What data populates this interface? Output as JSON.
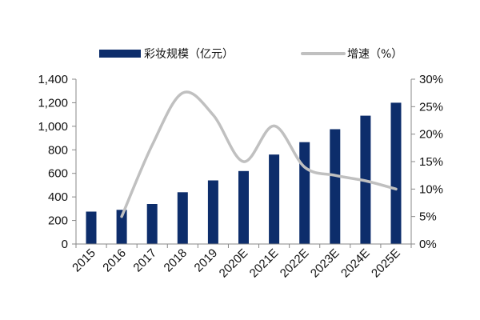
{
  "chart_data": {
    "type": "bar",
    "categories": [
      "2015",
      "2016",
      "2017",
      "2018",
      "2019",
      "2020E",
      "2021E",
      "2022E",
      "2023E",
      "2024E",
      "2025E"
    ],
    "series": [
      {
        "name": "彩妆规模（亿元）",
        "type": "bar",
        "axis": "left",
        "values": [
          275,
          290,
          340,
          440,
          540,
          620,
          760,
          865,
          975,
          1090,
          1200
        ],
        "color": "#0d2d6b"
      },
      {
        "name": "增速（%）",
        "type": "line",
        "axis": "right",
        "values": [
          null,
          5,
          18,
          27.5,
          23.5,
          15,
          21.5,
          14,
          12.5,
          11.5,
          10
        ],
        "color": "#c0c0c0"
      }
    ],
    "left_axis": {
      "ylim": [
        0,
        1400
      ],
      "ticks": [
        0,
        200,
        400,
        600,
        800,
        1000,
        1200,
        1400
      ],
      "tick_labels": [
        "0",
        "200",
        "400",
        "600",
        "800",
        "1,000",
        "1,200",
        "1,400"
      ]
    },
    "right_axis": {
      "ylim": [
        0,
        30
      ],
      "ticks": [
        0,
        5,
        10,
        15,
        20,
        25,
        30
      ],
      "tick_labels": [
        "0%",
        "5%",
        "10%",
        "15%",
        "20%",
        "25%",
        "30%"
      ]
    },
    "title": "",
    "xlabel": "",
    "ylabel": "",
    "grid": false,
    "legend_position": "top-center"
  }
}
